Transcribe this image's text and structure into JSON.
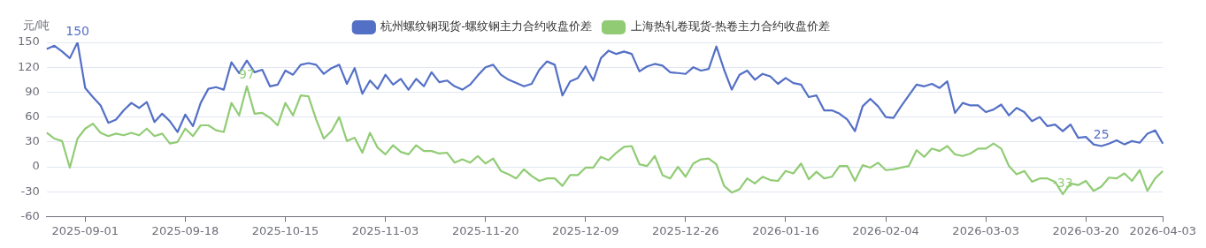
{
  "chart_data": {
    "type": "line",
    "ylabel": "元/吨",
    "legend": "top",
    "grid": "y",
    "marker": "none",
    "line_style": "solid",
    "ylim": [
      -60,
      150
    ],
    "yticks": [
      -60,
      -30,
      0,
      30,
      60,
      90,
      120,
      150
    ],
    "categories": [
      null,
      null,
      null,
      null,
      null,
      "2025-09-01",
      null,
      null,
      null,
      null,
      null,
      null,
      null,
      null,
      null,
      null,
      null,
      null,
      "2025-09-18",
      null,
      null,
      null,
      null,
      null,
      null,
      null,
      null,
      null,
      null,
      null,
      null,
      "2025-10-15",
      null,
      null,
      null,
      null,
      null,
      null,
      null,
      null,
      null,
      null,
      null,
      null,
      "2025-11-03",
      null,
      null,
      null,
      null,
      null,
      null,
      null,
      null,
      null,
      null,
      null,
      null,
      "2025-11-20",
      null,
      null,
      null,
      null,
      null,
      null,
      null,
      null,
      null,
      null,
      null,
      null,
      "2025-12-09",
      null,
      null,
      null,
      null,
      null,
      null,
      null,
      null,
      null,
      null,
      null,
      null,
      "2025-12-26",
      null,
      null,
      null,
      null,
      null,
      null,
      null,
      null,
      null,
      null,
      null,
      null,
      "2026-01-16",
      null,
      null,
      null,
      null,
      null,
      null,
      null,
      null,
      null,
      null,
      null,
      null,
      "2026-02-04",
      null,
      null,
      null,
      null,
      null,
      null,
      null,
      null,
      null,
      null,
      null,
      null,
      "2026-03-03",
      null,
      null,
      null,
      null,
      null,
      null,
      null,
      null,
      null,
      null,
      null,
      null,
      "2026-03-20",
      null,
      null,
      null,
      null,
      null,
      null,
      null,
      null,
      null,
      "2026-04-03"
    ],
    "series": [
      {
        "name": "杭州螺纹钢现货-螺纹钢主力合约收盘价差",
        "color": "#5470c6",
        "values": [
          142,
          146,
          139,
          131,
          150,
          95,
          84,
          74,
          53,
          57,
          68,
          77,
          71,
          78,
          54,
          64,
          55,
          42,
          63,
          49,
          77,
          94,
          96,
          93,
          126,
          113,
          128,
          114,
          117,
          97,
          99,
          116,
          111,
          123,
          125,
          123,
          112,
          119,
          123,
          100,
          119,
          88,
          104,
          94,
          111,
          99,
          106,
          93,
          106,
          97,
          114,
          102,
          104,
          97,
          93,
          99,
          110,
          120,
          123,
          111,
          105,
          101,
          97,
          100,
          117,
          127,
          123,
          86,
          103,
          107,
          121,
          104,
          131,
          140,
          136,
          139,
          136,
          115,
          121,
          124,
          122,
          114,
          113,
          112,
          120,
          116,
          118,
          145,
          117,
          93,
          111,
          116,
          105,
          112,
          109,
          100,
          107,
          101,
          99,
          84,
          86,
          68,
          68,
          64,
          57,
          43,
          73,
          82,
          73,
          60,
          59,
          73,
          86,
          99,
          97,
          100,
          95,
          103,
          65,
          77,
          74,
          74,
          66,
          69,
          75,
          62,
          71,
          66,
          55,
          60,
          49,
          51,
          43,
          51,
          35,
          36,
          27,
          25,
          28,
          32,
          27,
          31,
          29,
          40,
          44,
          28
        ],
        "value_labels": [
          null,
          null,
          null,
          null,
          "150",
          null,
          null,
          null,
          null,
          null,
          null,
          null,
          null,
          null,
          null,
          null,
          null,
          null,
          null,
          null,
          null,
          null,
          null,
          null,
          null,
          null,
          null,
          null,
          null,
          null,
          null,
          null,
          null,
          null,
          null,
          null,
          null,
          null,
          null,
          null,
          null,
          null,
          null,
          null,
          null,
          null,
          null,
          null,
          null,
          null,
          null,
          null,
          null,
          null,
          null,
          null,
          null,
          null,
          null,
          null,
          null,
          null,
          null,
          null,
          null,
          null,
          null,
          null,
          null,
          null,
          null,
          null,
          null,
          null,
          null,
          null,
          null,
          null,
          null,
          null,
          null,
          null,
          null,
          null,
          null,
          null,
          null,
          null,
          null,
          null,
          null,
          null,
          null,
          null,
          null,
          null,
          null,
          null,
          null,
          null,
          null,
          null,
          null,
          null,
          null,
          null,
          null,
          null,
          null,
          null,
          null,
          null,
          null,
          null,
          null,
          null,
          null,
          null,
          null,
          null,
          null,
          null,
          null,
          null,
          null,
          null,
          null,
          null,
          null,
          null,
          null,
          null,
          null,
          null,
          null,
          null,
          null,
          "25",
          null,
          null,
          null,
          null,
          null,
          null,
          null,
          null
        ]
      },
      {
        "name": "上海热轧卷现货-热卷主力合约收盘价差",
        "color": "#91cc75",
        "values": [
          41,
          34,
          31,
          -1,
          34,
          46,
          52,
          41,
          37,
          40,
          38,
          41,
          38,
          46,
          37,
          40,
          28,
          30,
          46,
          37,
          50,
          50,
          44,
          42,
          77,
          62,
          97,
          64,
          65,
          59,
          50,
          77,
          62,
          86,
          85,
          57,
          34,
          43,
          60,
          31,
          35,
          17,
          41,
          23,
          15,
          26,
          18,
          15,
          26,
          19,
          19,
          16,
          17,
          5,
          9,
          5,
          13,
          4,
          10,
          -5,
          -9,
          -14,
          -3,
          -11,
          -17,
          -14,
          -14,
          -23,
          -10,
          -10,
          -1,
          -1,
          12,
          8,
          17,
          24,
          25,
          3,
          1,
          13,
          -10,
          -14,
          0,
          -12,
          4,
          9,
          10,
          3,
          -23,
          -31,
          -27,
          -14,
          -20,
          -12,
          -16,
          -17,
          -5,
          -8,
          4,
          -15,
          -6,
          -14,
          -12,
          1,
          1,
          -17,
          2,
          -1,
          5,
          -4,
          -3,
          -1,
          1,
          20,
          12,
          22,
          19,
          25,
          15,
          13,
          16,
          22,
          22,
          28,
          22,
          1,
          -9,
          -5,
          -18,
          -14,
          -14,
          -18,
          -33,
          -20,
          -22,
          -17,
          -29,
          -24,
          -13,
          -14,
          -8,
          -17,
          -4,
          -29,
          -14,
          -5
        ],
        "value_labels": [
          null,
          null,
          null,
          null,
          null,
          null,
          null,
          null,
          null,
          null,
          null,
          null,
          null,
          null,
          null,
          null,
          null,
          null,
          null,
          null,
          null,
          null,
          null,
          null,
          null,
          null,
          "97",
          null,
          null,
          null,
          null,
          null,
          null,
          null,
          null,
          null,
          null,
          null,
          null,
          null,
          null,
          null,
          null,
          null,
          null,
          null,
          null,
          null,
          null,
          null,
          null,
          null,
          null,
          null,
          null,
          null,
          null,
          null,
          null,
          null,
          null,
          null,
          null,
          null,
          null,
          null,
          null,
          null,
          null,
          null,
          null,
          null,
          null,
          null,
          null,
          null,
          null,
          null,
          null,
          null,
          null,
          null,
          null,
          null,
          null,
          null,
          null,
          null,
          null,
          null,
          null,
          null,
          null,
          null,
          null,
          null,
          null,
          null,
          null,
          null,
          null,
          null,
          null,
          null,
          null,
          null,
          null,
          null,
          null,
          null,
          null,
          null,
          null,
          null,
          null,
          null,
          null,
          null,
          null,
          null,
          null,
          null,
          null,
          null,
          null,
          null,
          null,
          null,
          null,
          null,
          null,
          null,
          "-33",
          null,
          null,
          null,
          null,
          null,
          null,
          null,
          null,
          null,
          null,
          null,
          null,
          null
        ]
      }
    ]
  }
}
